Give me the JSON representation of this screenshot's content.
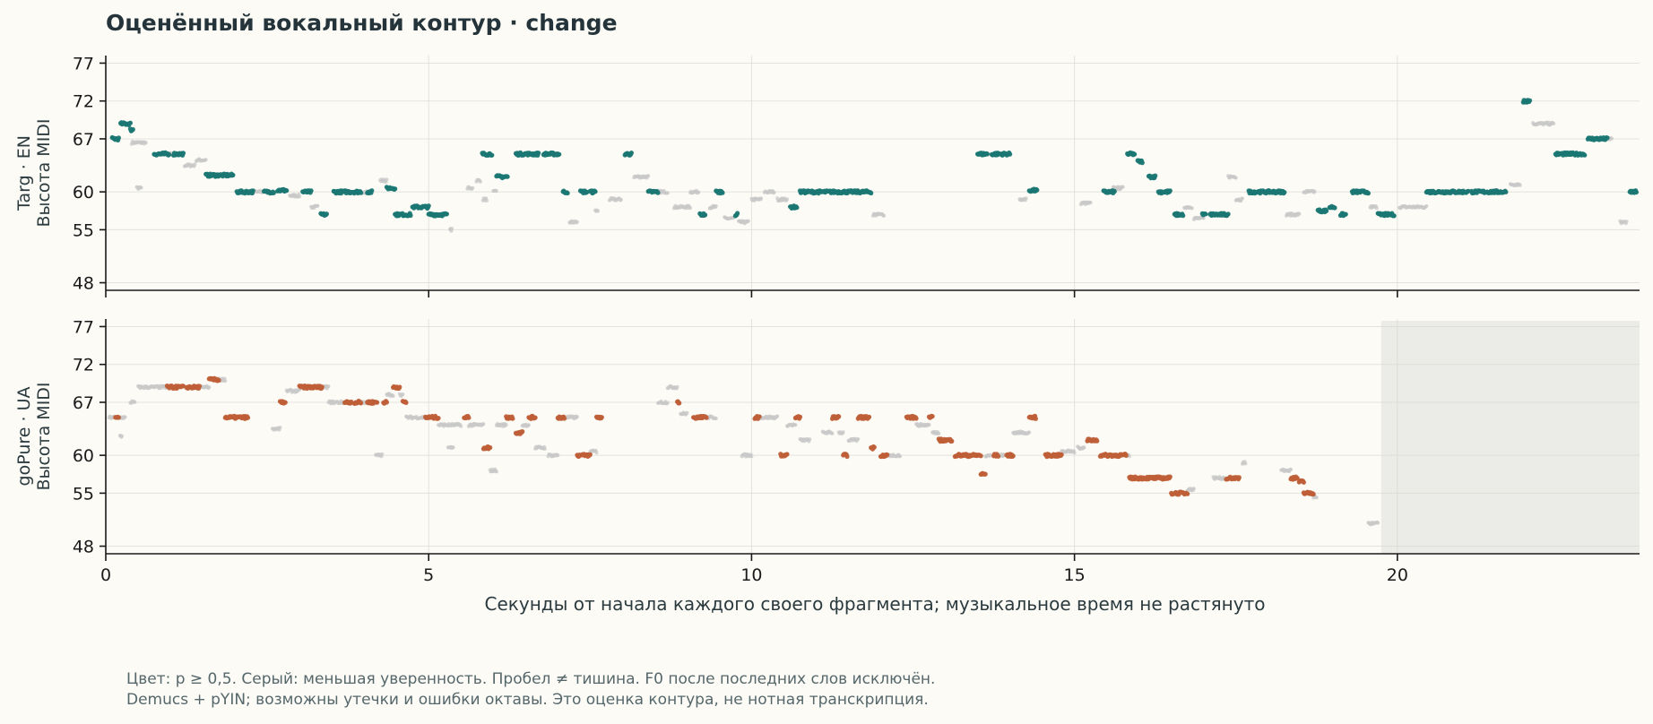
{
  "chart_data": {
    "type": "scatter",
    "title": "Оценённый вокальный контур · change",
    "xlabel": "Секунды от начала каждого своего фрагмента; музыкальное время не растянуто",
    "xlim": [
      0,
      23.75
    ],
    "xticks": [
      0,
      5,
      10,
      15,
      20
    ],
    "ylim": [
      47,
      78
    ],
    "yticks": [
      48,
      55,
      60,
      67,
      72,
      77
    ],
    "grid": true,
    "colors": {
      "confident_top": "#1b7773",
      "confident_bottom": "#bf5f38",
      "low_confidence": "#c8c8c8",
      "shade": "#e8e8e4"
    },
    "notes": [
      "Цвет: p ≥ 0,5. Серый: меньшая уверенность. Пробел ≠ тишина. F0 после последних слов исключён.",
      "Demucs + pYIN; возможны утечки и ошибки октавы. Это оценка контура, не нотная транскрипция."
    ],
    "panels": [
      {
        "ylabel_line1": "Targ · EN",
        "ylabel_line2": "Высота MIDI",
        "color": "#1b7773",
        "shaded_region": null,
        "confident_segments": [
          [
            0.1,
            0.2,
            67
          ],
          [
            0.23,
            0.38,
            69
          ],
          [
            0.38,
            0.42,
            68.2
          ],
          [
            0.75,
            0.98,
            65
          ],
          [
            1.05,
            1.2,
            65
          ],
          [
            1.55,
            1.97,
            62.2
          ],
          [
            2.03,
            2.28,
            60
          ],
          [
            2.45,
            2.6,
            60
          ],
          [
            2.66,
            2.8,
            60.2
          ],
          [
            3.05,
            3.18,
            60
          ],
          [
            3.33,
            3.42,
            57
          ],
          [
            3.53,
            3.95,
            60
          ],
          [
            4.05,
            4.12,
            60
          ],
          [
            4.35,
            4.48,
            60.5
          ],
          [
            4.48,
            4.72,
            57
          ],
          [
            4.75,
            5.0,
            58
          ],
          [
            5.0,
            5.28,
            57
          ],
          [
            5.83,
            5.98,
            65
          ],
          [
            6.05,
            6.22,
            62
          ],
          [
            6.35,
            6.7,
            65
          ],
          [
            6.78,
            7.02,
            65
          ],
          [
            7.08,
            7.15,
            60
          ],
          [
            7.35,
            7.45,
            60
          ],
          [
            7.5,
            7.58,
            60
          ],
          [
            8.04,
            8.14,
            65
          ],
          [
            8.4,
            8.55,
            60
          ],
          [
            9.2,
            9.28,
            57
          ],
          [
            9.45,
            9.55,
            60
          ],
          [
            9.75,
            9.78,
            57
          ],
          [
            10.6,
            10.7,
            58
          ],
          [
            10.75,
            11.85,
            60
          ],
          [
            13.5,
            13.65,
            65
          ],
          [
            13.72,
            14.0,
            65
          ],
          [
            14.3,
            14.42,
            60.2
          ],
          [
            15.45,
            15.62,
            60
          ],
          [
            15.82,
            15.93,
            65
          ],
          [
            15.98,
            16.05,
            64
          ],
          [
            16.15,
            16.25,
            62
          ],
          [
            16.3,
            16.48,
            60
          ],
          [
            16.55,
            16.68,
            57
          ],
          [
            16.98,
            17.03,
            57
          ],
          [
            17.1,
            17.25,
            57
          ],
          [
            17.25,
            17.38,
            57
          ],
          [
            17.7,
            17.98,
            60
          ],
          [
            18.0,
            18.25,
            60
          ],
          [
            18.77,
            18.9,
            57.5
          ],
          [
            18.95,
            19.03,
            58
          ],
          [
            19.12,
            19.2,
            57
          ],
          [
            19.3,
            19.55,
            60
          ],
          [
            19.7,
            19.95,
            57
          ],
          [
            20.45,
            21.1,
            60
          ],
          [
            21.15,
            21.3,
            60
          ],
          [
            21.3,
            21.55,
            60
          ],
          [
            21.55,
            21.68,
            60
          ],
          [
            21.95,
            22.05,
            72
          ],
          [
            22.45,
            22.9,
            65
          ],
          [
            22.95,
            23.25,
            67
          ],
          [
            23.6,
            23.7,
            60
          ]
        ],
        "low_segments": [
          [
            0.4,
            0.62,
            66.5
          ],
          [
            0.48,
            0.55,
            60.5
          ],
          [
            0.98,
            1.05,
            65
          ],
          [
            1.22,
            1.38,
            63.5
          ],
          [
            1.4,
            1.55,
            64.2
          ],
          [
            2.28,
            2.42,
            60
          ],
          [
            2.85,
            3.0,
            59.5
          ],
          [
            3.18,
            3.28,
            58
          ],
          [
            3.95,
            4.05,
            60
          ],
          [
            4.25,
            4.35,
            61.5
          ],
          [
            5.33,
            5.36,
            55
          ],
          [
            5.6,
            5.68,
            60.5
          ],
          [
            5.74,
            5.8,
            61.5
          ],
          [
            5.84,
            5.9,
            59
          ],
          [
            6.0,
            6.05,
            60
          ],
          [
            7.18,
            7.3,
            56
          ],
          [
            7.58,
            7.62,
            57.5
          ],
          [
            7.8,
            7.98,
            59
          ],
          [
            8.18,
            8.4,
            62
          ],
          [
            8.55,
            8.7,
            60
          ],
          [
            8.8,
            9.05,
            58
          ],
          [
            9.05,
            9.18,
            60
          ],
          [
            9.35,
            9.45,
            58
          ],
          [
            9.58,
            9.72,
            56.5
          ],
          [
            9.8,
            9.95,
            56
          ],
          [
            10.0,
            10.15,
            59
          ],
          [
            10.2,
            10.35,
            60
          ],
          [
            10.4,
            10.55,
            59
          ],
          [
            11.88,
            12.05,
            57
          ],
          [
            14.15,
            14.25,
            59
          ],
          [
            15.1,
            15.25,
            58.5
          ],
          [
            15.6,
            15.75,
            60.5
          ],
          [
            16.7,
            16.82,
            58
          ],
          [
            16.85,
            17.0,
            56.5
          ],
          [
            17.38,
            17.5,
            62
          ],
          [
            17.5,
            17.6,
            59
          ],
          [
            18.28,
            18.48,
            57
          ],
          [
            18.55,
            18.72,
            60
          ],
          [
            19.58,
            19.68,
            58
          ],
          [
            20.03,
            20.45,
            58
          ],
          [
            21.75,
            21.9,
            61
          ],
          [
            22.1,
            22.42,
            69
          ],
          [
            23.25,
            23.32,
            67
          ],
          [
            23.45,
            23.55,
            56
          ]
        ]
      },
      {
        "ylabel_line1": "goPure · UA",
        "ylabel_line2": "Высота MIDI",
        "color": "#bf5f38",
        "shaded_region": [
          19.75,
          23.75
        ],
        "confident_segments": [
          [
            0.15,
            0.2,
            65
          ],
          [
            0.95,
            1.2,
            69
          ],
          [
            1.25,
            1.45,
            69
          ],
          [
            1.6,
            1.75,
            70
          ],
          [
            1.85,
            2.2,
            65
          ],
          [
            2.7,
            2.78,
            67
          ],
          [
            3.0,
            3.35,
            69
          ],
          [
            3.7,
            3.8,
            67
          ],
          [
            3.85,
            3.95,
            67
          ],
          [
            4.05,
            4.2,
            67
          ],
          [
            4.3,
            4.35,
            67
          ],
          [
            4.45,
            4.55,
            69
          ],
          [
            4.6,
            4.65,
            67
          ],
          [
            4.95,
            5.15,
            65
          ],
          [
            5.55,
            5.62,
            65
          ],
          [
            5.85,
            5.95,
            61
          ],
          [
            6.2,
            6.3,
            65
          ],
          [
            6.35,
            6.45,
            63
          ],
          [
            6.55,
            6.65,
            65
          ],
          [
            7.0,
            7.1,
            65
          ],
          [
            7.3,
            7.5,
            60
          ],
          [
            7.6,
            7.68,
            65
          ],
          [
            8.85,
            8.88,
            67
          ],
          [
            9.1,
            9.3,
            65
          ],
          [
            10.05,
            10.12,
            65
          ],
          [
            10.45,
            10.55,
            60
          ],
          [
            10.68,
            10.75,
            65
          ],
          [
            11.25,
            11.35,
            65
          ],
          [
            11.42,
            11.48,
            60
          ],
          [
            11.65,
            11.82,
            65
          ],
          [
            11.85,
            11.9,
            61
          ],
          [
            12.0,
            12.1,
            60
          ],
          [
            12.4,
            12.55,
            65
          ],
          [
            12.75,
            12.8,
            65
          ],
          [
            12.9,
            13.1,
            62
          ],
          [
            13.15,
            13.55,
            60
          ],
          [
            13.55,
            13.62,
            57.5
          ],
          [
            13.75,
            13.82,
            60
          ],
          [
            13.95,
            14.05,
            60
          ],
          [
            14.3,
            14.4,
            65
          ],
          [
            14.55,
            14.8,
            60
          ],
          [
            15.2,
            15.35,
            62
          ],
          [
            15.4,
            15.8,
            60
          ],
          [
            15.85,
            16.48,
            57
          ],
          [
            16.5,
            16.75,
            55
          ],
          [
            17.35,
            17.55,
            57
          ],
          [
            18.35,
            18.45,
            57
          ],
          [
            18.48,
            18.55,
            56.5
          ],
          [
            18.55,
            18.7,
            55
          ]
        ],
        "low_segments": [
          [
            0.05,
            0.15,
            65
          ],
          [
            0.2,
            0.3,
            65
          ],
          [
            0.22,
            0.25,
            62.5
          ],
          [
            0.38,
            0.45,
            67
          ],
          [
            0.5,
            0.95,
            69
          ],
          [
            1.45,
            1.6,
            69
          ],
          [
            1.75,
            1.85,
            70
          ],
          [
            2.58,
            2.7,
            63.5
          ],
          [
            2.8,
            3.0,
            68.5
          ],
          [
            3.35,
            3.45,
            69
          ],
          [
            3.45,
            3.7,
            67
          ],
          [
            3.95,
            4.05,
            67
          ],
          [
            4.18,
            4.28,
            60
          ],
          [
            4.35,
            4.45,
            68
          ],
          [
            4.55,
            4.6,
            68
          ],
          [
            4.65,
            4.95,
            65
          ],
          [
            5.15,
            5.5,
            64
          ],
          [
            5.3,
            5.38,
            61
          ],
          [
            5.62,
            5.85,
            64
          ],
          [
            5.95,
            6.05,
            58
          ],
          [
            6.05,
            6.2,
            64
          ],
          [
            6.45,
            6.55,
            64
          ],
          [
            6.65,
            6.8,
            61
          ],
          [
            6.85,
            7.0,
            60
          ],
          [
            7.1,
            7.3,
            65
          ],
          [
            7.5,
            7.6,
            60.5
          ],
          [
            8.55,
            8.7,
            67
          ],
          [
            8.7,
            8.85,
            69
          ],
          [
            8.9,
            9.0,
            65.5
          ],
          [
            9.3,
            9.45,
            65
          ],
          [
            9.85,
            10.0,
            60
          ],
          [
            10.12,
            10.4,
            65
          ],
          [
            10.55,
            10.68,
            64
          ],
          [
            10.75,
            10.9,
            62
          ],
          [
            11.1,
            11.25,
            63
          ],
          [
            11.35,
            11.42,
            63
          ],
          [
            11.5,
            11.65,
            62
          ],
          [
            12.1,
            12.3,
            60
          ],
          [
            12.55,
            12.75,
            64
          ],
          [
            12.8,
            12.9,
            63
          ],
          [
            13.62,
            13.7,
            60
          ],
          [
            13.82,
            13.95,
            60
          ],
          [
            14.05,
            14.3,
            63
          ],
          [
            14.8,
            15.0,
            60.5
          ],
          [
            15.05,
            15.15,
            61
          ],
          [
            15.8,
            15.85,
            60
          ],
          [
            16.75,
            16.85,
            55.5
          ],
          [
            17.15,
            17.35,
            57
          ],
          [
            17.6,
            17.65,
            59
          ],
          [
            18.2,
            18.35,
            58
          ],
          [
            18.7,
            18.75,
            54.5
          ],
          [
            19.55,
            19.7,
            51
          ]
        ]
      }
    ]
  }
}
